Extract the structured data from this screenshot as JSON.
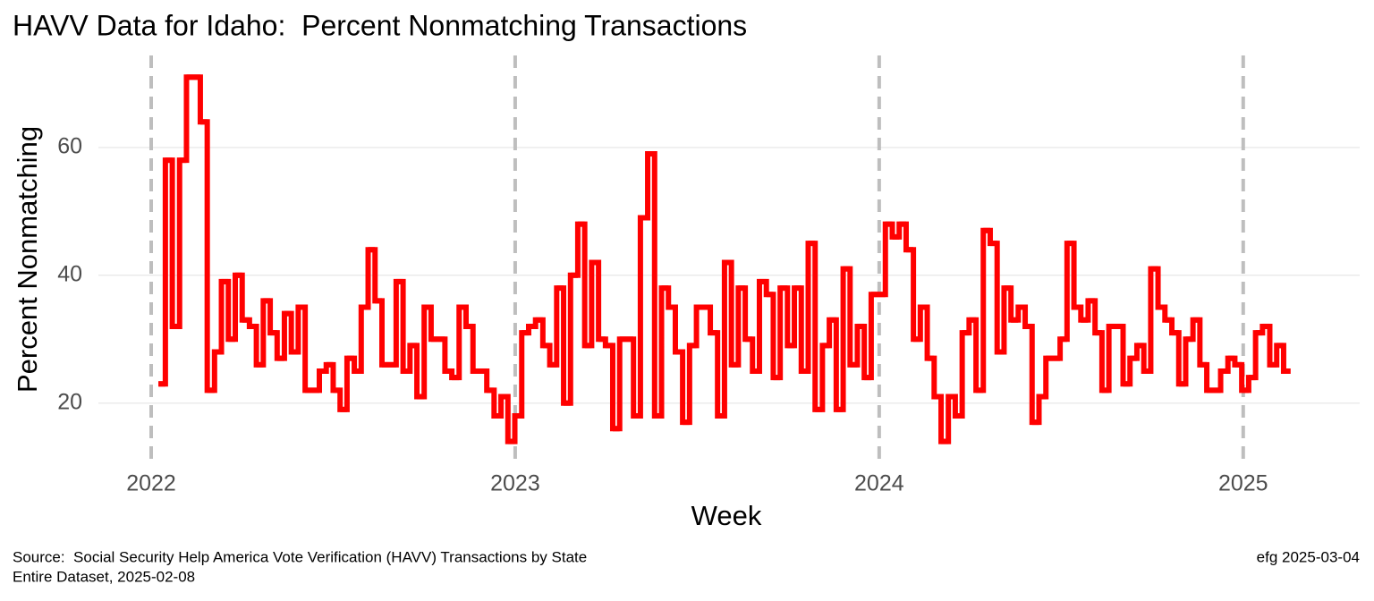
{
  "chart_data": {
    "type": "step",
    "title": "HAVV Data for Idaho:  Percent Nonmatching Transactions",
    "x_label": "Week",
    "y_label": "Percent Nonmatching",
    "caption": [
      "Source:  Social Security Help America Vote Verification (HAVV) Transactions by State",
      "Entire Dataset, 2025-02-08"
    ],
    "caption_right": "efg 2025-03-04",
    "xlim": [
      2021.855,
      2025.32
    ],
    "xticks": [
      2022,
      2023,
      2024,
      2025
    ],
    "ylim": [
      11,
      73
    ],
    "yticks": [
      20,
      40,
      60
    ],
    "grid": true,
    "series": [
      {
        "color": "#ff0000",
        "x": [
          2022.02,
          2022.039,
          2022.058,
          2022.078,
          2022.097,
          2022.116,
          2022.135,
          2022.154,
          2022.174,
          2022.193,
          2022.212,
          2022.231,
          2022.25,
          2022.27,
          2022.289,
          2022.308,
          2022.327,
          2022.346,
          2022.366,
          2022.385,
          2022.404,
          2022.423,
          2022.442,
          2022.462,
          2022.481,
          2022.5,
          2022.519,
          2022.538,
          2022.558,
          2022.577,
          2022.596,
          2022.615,
          2022.634,
          2022.654,
          2022.673,
          2022.692,
          2022.711,
          2022.73,
          2022.75,
          2022.769,
          2022.788,
          2022.807,
          2022.826,
          2022.846,
          2022.865,
          2022.884,
          2022.903,
          2022.922,
          2022.942,
          2022.961,
          2022.98,
          2022.999,
          2023.018,
          2023.037,
          2023.056,
          2023.076,
          2023.095,
          2023.114,
          2023.133,
          2023.152,
          2023.172,
          2023.191,
          2023.21,
          2023.229,
          2023.248,
          2023.268,
          2023.287,
          2023.306,
          2023.325,
          2023.344,
          2023.364,
          2023.383,
          2023.402,
          2023.421,
          2023.44,
          2023.46,
          2023.479,
          2023.498,
          2023.517,
          2023.536,
          2023.556,
          2023.575,
          2023.594,
          2023.613,
          2023.632,
          2023.652,
          2023.671,
          2023.69,
          2023.709,
          2023.728,
          2023.748,
          2023.767,
          2023.786,
          2023.805,
          2023.824,
          2023.844,
          2023.863,
          2023.882,
          2023.901,
          2023.92,
          2023.94,
          2023.959,
          2023.978,
          2023.997,
          2024.017,
          2024.036,
          2024.055,
          2024.074,
          2024.094,
          2024.113,
          2024.132,
          2024.151,
          2024.17,
          2024.19,
          2024.209,
          2024.228,
          2024.247,
          2024.266,
          2024.286,
          2024.305,
          2024.324,
          2024.343,
          2024.362,
          2024.382,
          2024.401,
          2024.42,
          2024.439,
          2024.458,
          2024.478,
          2024.497,
          2024.516,
          2024.535,
          2024.554,
          2024.574,
          2024.593,
          2024.612,
          2024.631,
          2024.65,
          2024.67,
          2024.689,
          2024.708,
          2024.727,
          2024.746,
          2024.766,
          2024.785,
          2024.804,
          2024.823,
          2024.842,
          2024.862,
          2024.881,
          2024.9,
          2024.919,
          2024.938,
          2024.958,
          2024.977,
          2024.996,
          2025.015,
          2025.034,
          2025.053,
          2025.073,
          2025.092,
          2025.111
        ],
        "values": [
          23,
          58,
          32,
          58,
          71,
          71,
          64,
          22,
          28,
          39,
          30,
          40,
          33,
          32,
          26,
          36,
          31,
          27,
          34,
          28,
          35,
          22,
          22,
          25,
          26,
          22,
          19,
          27,
          25,
          35,
          44,
          36,
          26,
          26,
          39,
          25,
          29,
          21,
          35,
          30,
          30,
          25,
          24,
          35,
          32,
          25,
          25,
          22,
          18,
          21,
          14,
          18,
          31,
          32,
          33,
          29,
          26,
          38,
          20,
          40,
          48,
          29,
          42,
          30,
          29,
          16,
          30,
          30,
          18,
          49,
          59,
          18,
          38,
          35,
          28,
          17,
          29,
          35,
          35,
          31,
          18,
          42,
          26,
          38,
          30,
          25,
          39,
          37,
          24,
          38,
          29,
          38,
          25,
          45,
          19,
          29,
          33,
          19,
          41,
          26,
          32,
          24,
          37,
          37,
          48,
          46,
          48,
          44,
          30,
          35,
          27,
          21,
          14,
          21,
          18,
          31,
          33,
          22,
          47,
          45,
          28,
          38,
          33,
          35,
          32,
          17,
          21,
          27,
          27,
          30,
          45,
          35,
          33,
          36,
          31,
          22,
          32,
          32,
          23,
          27,
          29,
          25,
          41,
          35,
          33,
          31,
          23,
          30,
          33,
          26,
          22,
          22,
          25,
          27,
          26,
          22,
          24,
          31,
          32,
          26,
          29,
          25
        ]
      }
    ]
  }
}
